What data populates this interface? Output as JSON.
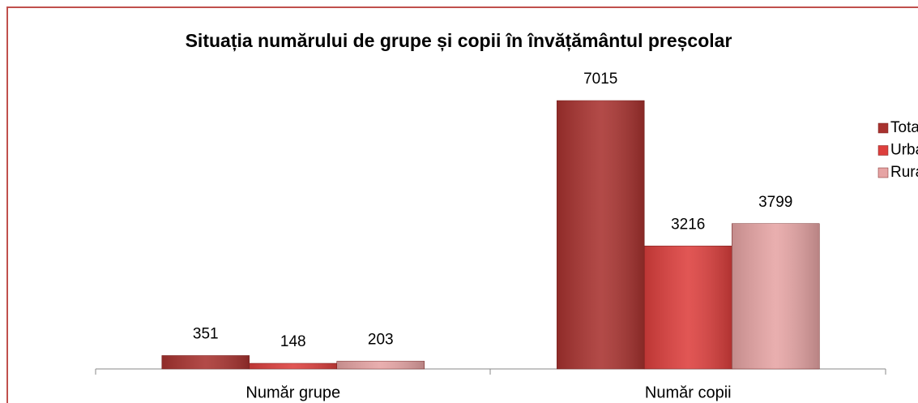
{
  "chart_data": {
    "type": "bar",
    "title": "Situația numărului de grupe și copii în învățământul preșcolar",
    "categories": [
      "Număr grupe",
      "Număr copii"
    ],
    "series": [
      {
        "name": "Total",
        "color": "#a8322f",
        "values": [
          351,
          7015
        ]
      },
      {
        "name": "Urban",
        "color": "#dd3f3d",
        "values": [
          148,
          3216
        ]
      },
      {
        "name": "Rural",
        "color": "#e6a4a4",
        "values": [
          203,
          3799
        ]
      }
    ],
    "legend": "right"
  }
}
